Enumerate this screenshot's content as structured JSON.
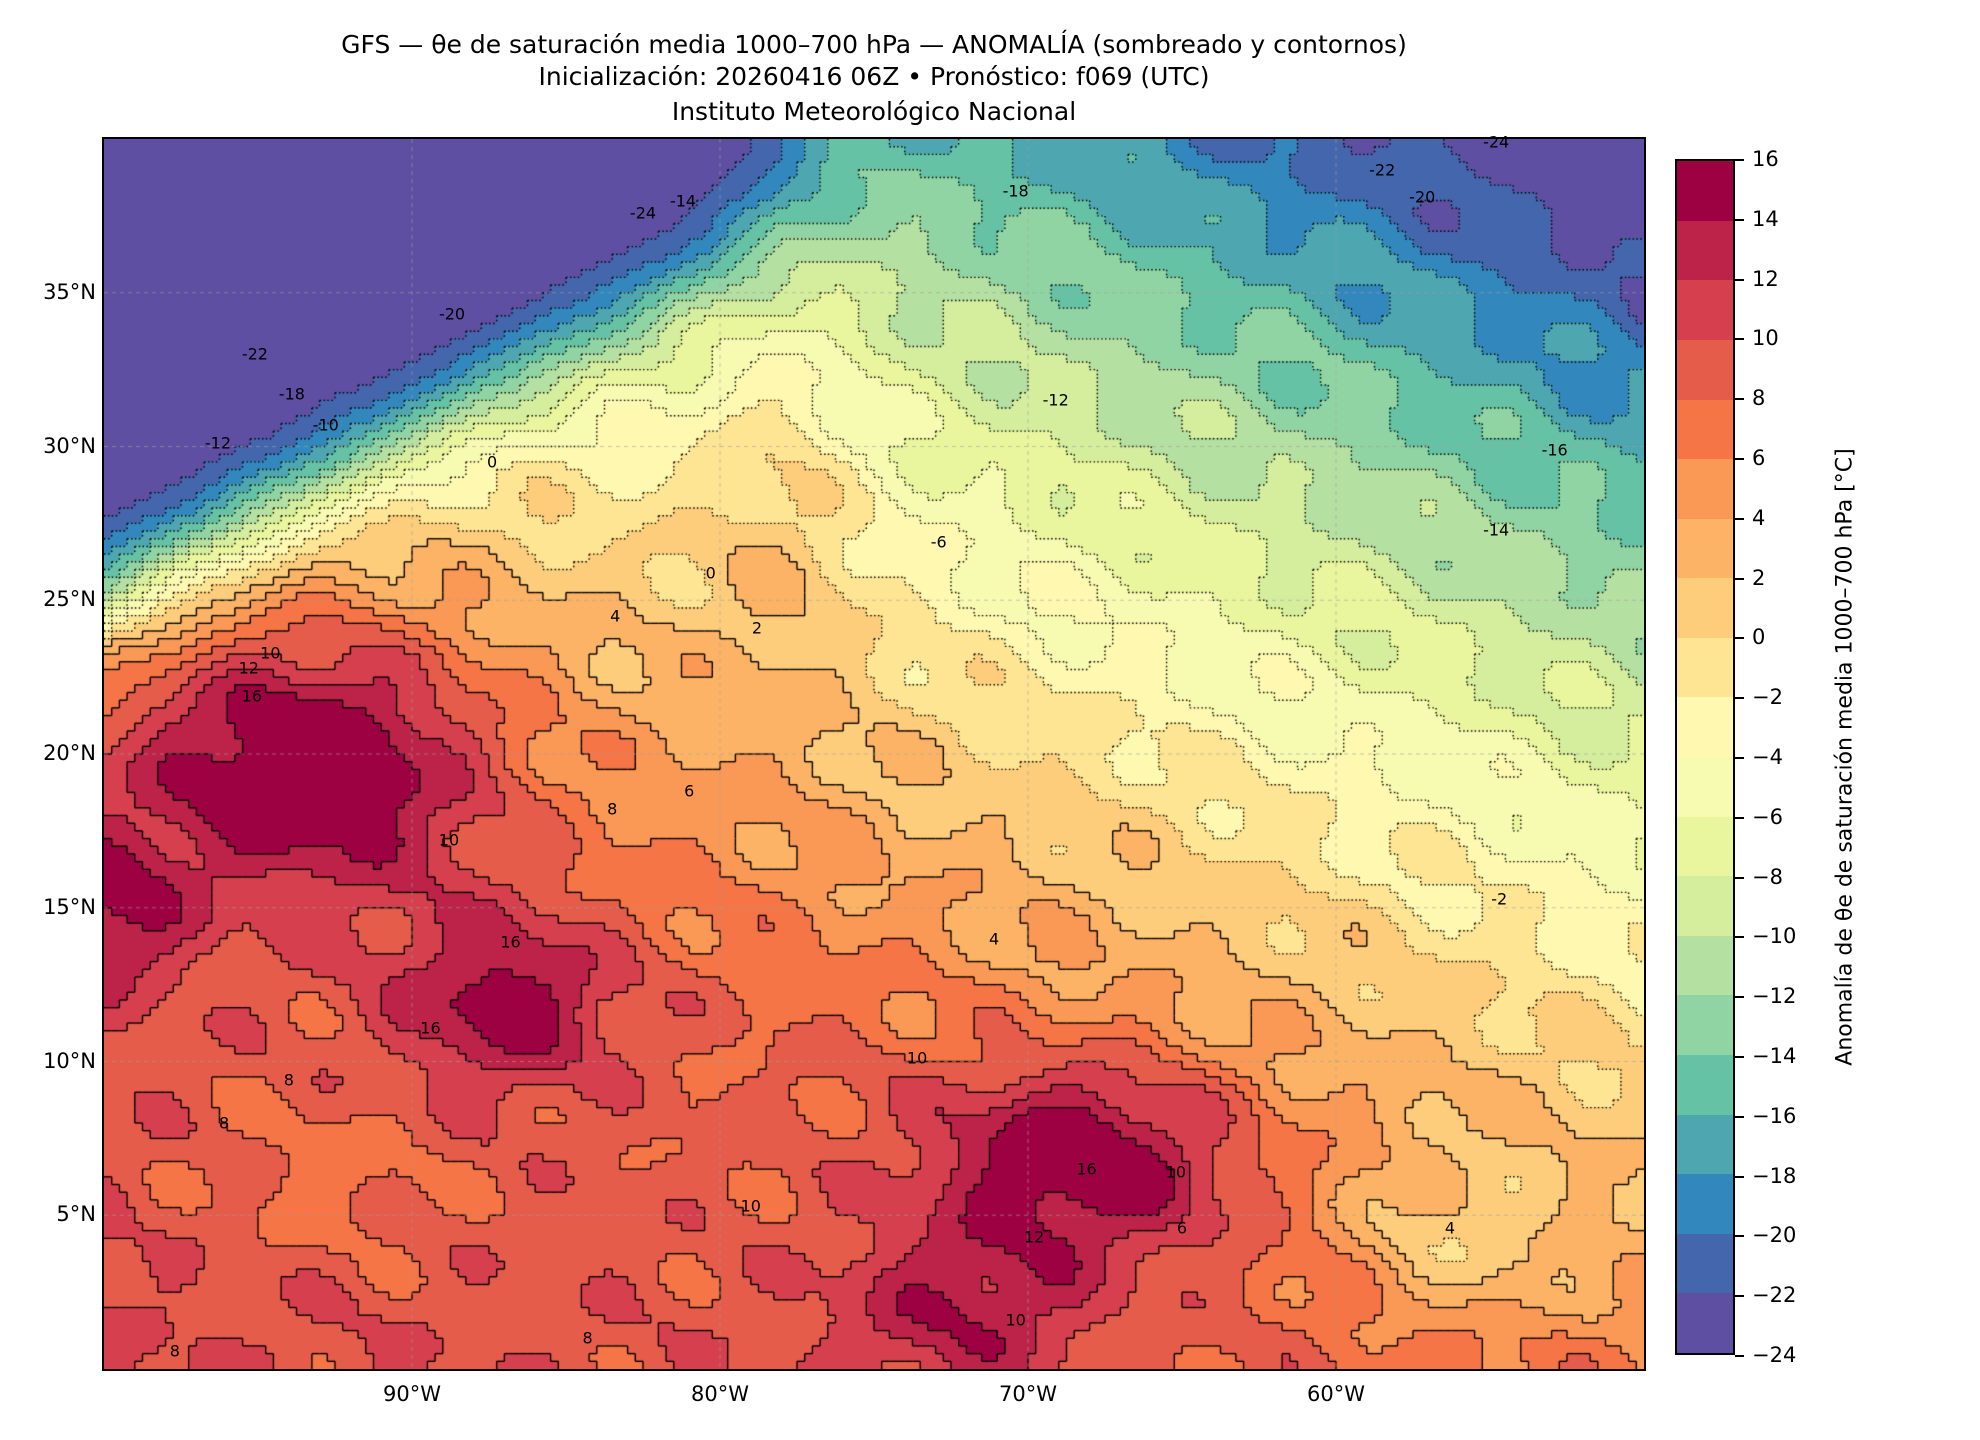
{
  "title": {
    "line1": "GFS — θe de saturación media 1000–700 hPa — ANOMALÍA (sombreado y contornos)",
    "line2": "Inicialización: 20260416 06Z   •   Pronóstico: f069 (UTC)",
    "line3": "Instituto Meteorológico Nacional"
  },
  "map": {
    "lon_range": [
      -100,
      -50
    ],
    "lat_range": [
      0,
      40
    ],
    "y_ticks": [
      {
        "lat": 35,
        "label": "35°N"
      },
      {
        "lat": 30,
        "label": "30°N"
      },
      {
        "lat": 25,
        "label": "25°N"
      },
      {
        "lat": 20,
        "label": "20°N"
      },
      {
        "lat": 15,
        "label": "15°N"
      },
      {
        "lat": 10,
        "label": "10°N"
      },
      {
        "lat": 5,
        "label": "5°N"
      }
    ],
    "x_ticks": [
      {
        "lon": -90,
        "label": "90°W"
      },
      {
        "lon": -80,
        "label": "80°W"
      },
      {
        "lon": -70,
        "label": "70°W"
      },
      {
        "lon": -60,
        "label": "60°W"
      }
    ],
    "contour_labels": [
      {
        "lon": -82.5,
        "lat": 37.6,
        "text": "-24"
      },
      {
        "lon": -81.2,
        "lat": 38.0,
        "text": "-14"
      },
      {
        "lon": -88.7,
        "lat": 34.3,
        "text": "-20"
      },
      {
        "lon": -95.1,
        "lat": 33.0,
        "text": "-22"
      },
      {
        "lon": -93.9,
        "lat": 31.7,
        "text": "-18"
      },
      {
        "lon": -96.3,
        "lat": 30.1,
        "text": "-12"
      },
      {
        "lon": -92.8,
        "lat": 30.7,
        "text": "-10"
      },
      {
        "lon": -87.4,
        "lat": 29.5,
        "text": "0"
      },
      {
        "lon": -70.4,
        "lat": 38.3,
        "text": "-18"
      },
      {
        "lon": -57.2,
        "lat": 38.1,
        "text": "-20"
      },
      {
        "lon": -58.5,
        "lat": 39.0,
        "text": "-22"
      },
      {
        "lon": -54.8,
        "lat": 39.9,
        "text": "-24"
      },
      {
        "lon": -69.1,
        "lat": 31.5,
        "text": "-12"
      },
      {
        "lon": -52.9,
        "lat": 29.9,
        "text": "-16"
      },
      {
        "lon": -54.8,
        "lat": 27.3,
        "text": "-14"
      },
      {
        "lon": -72.9,
        "lat": 26.9,
        "text": "-6"
      },
      {
        "lon": -54.7,
        "lat": 15.3,
        "text": "-2"
      },
      {
        "lon": -78.8,
        "lat": 24.1,
        "text": "2"
      },
      {
        "lon": -80.3,
        "lat": 25.9,
        "text": "0"
      },
      {
        "lon": -83.4,
        "lat": 24.5,
        "text": "4"
      },
      {
        "lon": -94.6,
        "lat": 23.3,
        "text": "10"
      },
      {
        "lon": -95.3,
        "lat": 22.8,
        "text": "12"
      },
      {
        "lon": -95.2,
        "lat": 21.9,
        "text": "16"
      },
      {
        "lon": -81.0,
        "lat": 18.8,
        "text": "6"
      },
      {
        "lon": -88.8,
        "lat": 17.2,
        "text": "10"
      },
      {
        "lon": -83.5,
        "lat": 18.2,
        "text": "8"
      },
      {
        "lon": -71.1,
        "lat": 14.0,
        "text": "4"
      },
      {
        "lon": -86.8,
        "lat": 13.9,
        "text": "16"
      },
      {
        "lon": -89.4,
        "lat": 11.1,
        "text": "16"
      },
      {
        "lon": -68.1,
        "lat": 6.5,
        "text": "16"
      },
      {
        "lon": -65.2,
        "lat": 6.4,
        "text": "10"
      },
      {
        "lon": -69.8,
        "lat": 4.3,
        "text": "12"
      },
      {
        "lon": -94.0,
        "lat": 9.4,
        "text": "8"
      },
      {
        "lon": -96.1,
        "lat": 8.0,
        "text": "8"
      },
      {
        "lon": -79.0,
        "lat": 5.3,
        "text": "10"
      },
      {
        "lon": -70.4,
        "lat": 1.6,
        "text": "10"
      },
      {
        "lon": -56.3,
        "lat": 4.6,
        "text": "4"
      },
      {
        "lon": -65.0,
        "lat": 4.6,
        "text": "6"
      },
      {
        "lon": -84.3,
        "lat": 1.0,
        "text": "8"
      },
      {
        "lon": -97.7,
        "lat": 0.6,
        "text": "8"
      },
      {
        "lon": -73.6,
        "lat": 10.1,
        "text": "10"
      }
    ]
  },
  "colorbar": {
    "levels": [
      -24,
      -22,
      -20,
      -18,
      -16,
      -14,
      -12,
      -10,
      -8,
      -6,
      -4,
      -2,
      0,
      2,
      4,
      6,
      8,
      10,
      12,
      14,
      16
    ],
    "tick_labels": [
      "−24",
      "−22",
      "−20",
      "−18",
      "−16",
      "−14",
      "−12",
      "−10",
      "−8",
      "−6",
      "−4",
      "−2",
      "0",
      "2",
      "4",
      "6",
      "8",
      "10",
      "12",
      "14",
      "16"
    ],
    "colors": [
      "#5e4fa2",
      "#4466ac",
      "#3288bd",
      "#4ea7b0",
      "#66c2a5",
      "#91d4a4",
      "#b4e0a2",
      "#d4ee9e",
      "#e9f69d",
      "#f7fbb2",
      "#fef8b0",
      "#fee593",
      "#fdcd7c",
      "#fdb365",
      "#fa9856",
      "#f57547",
      "#e65c4b",
      "#d6404e",
      "#bd2349",
      "#9e0142"
    ],
    "label": "Anomalía de θe de saturación media 1000–700 hPa [°C]"
  }
}
